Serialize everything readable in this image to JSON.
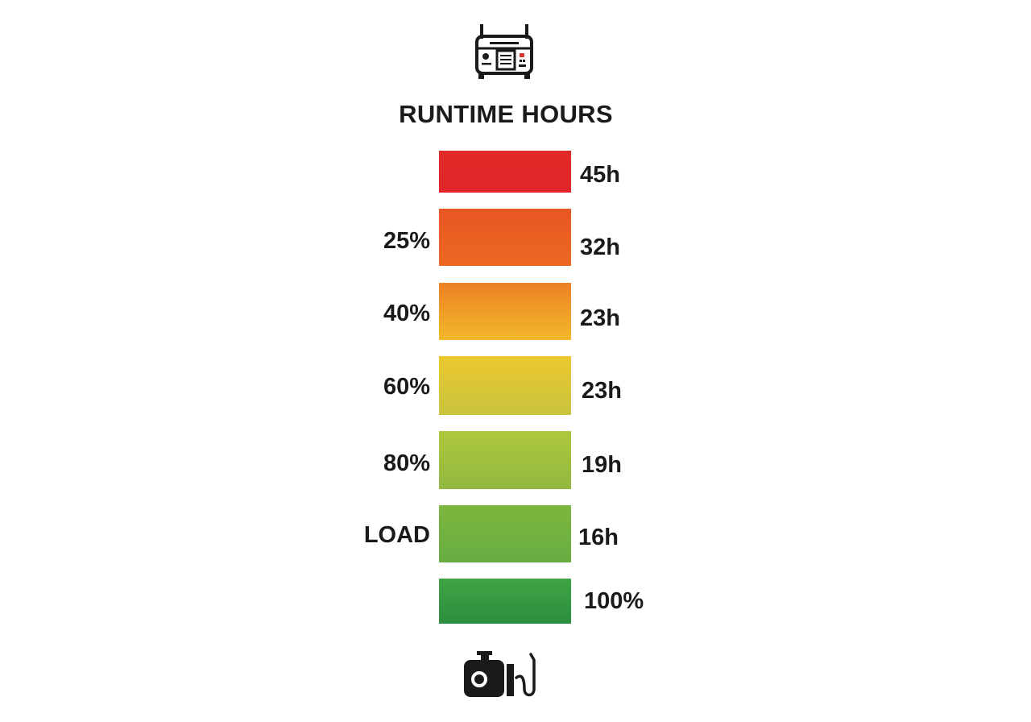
{
  "title": "RUNTIME HOURS",
  "icons": {
    "top": "generator-icon",
    "bottom": "engine-fuel-icon"
  },
  "chart_data": {
    "type": "bar",
    "title": "RUNTIME HOURS",
    "rows": [
      {
        "left_label": "",
        "right_label": "45h",
        "color_top": "#e02a26",
        "color_bottom": "#e0262a"
      },
      {
        "left_label": "25%",
        "right_label": "32h",
        "color_top": "#e85522",
        "color_bottom": "#ec6a22"
      },
      {
        "left_label": "40%",
        "right_label": "23h",
        "color_top": "#ee8024",
        "color_bottom": "#f2b82a"
      },
      {
        "left_label": "60%",
        "right_label": "23h",
        "color_top": "#ecc82e",
        "color_bottom": "#c8c43e"
      },
      {
        "left_label": "80%",
        "right_label": "19h",
        "color_top": "#aec83c",
        "color_bottom": "#92b840"
      },
      {
        "left_label": "LOAD",
        "right_label": "16h",
        "color_top": "#7cb83e",
        "color_bottom": "#68ac42"
      },
      {
        "left_label": "",
        "right_label": "100%",
        "color_top": "#3fa444",
        "color_bottom": "#2c8e3e"
      }
    ]
  }
}
